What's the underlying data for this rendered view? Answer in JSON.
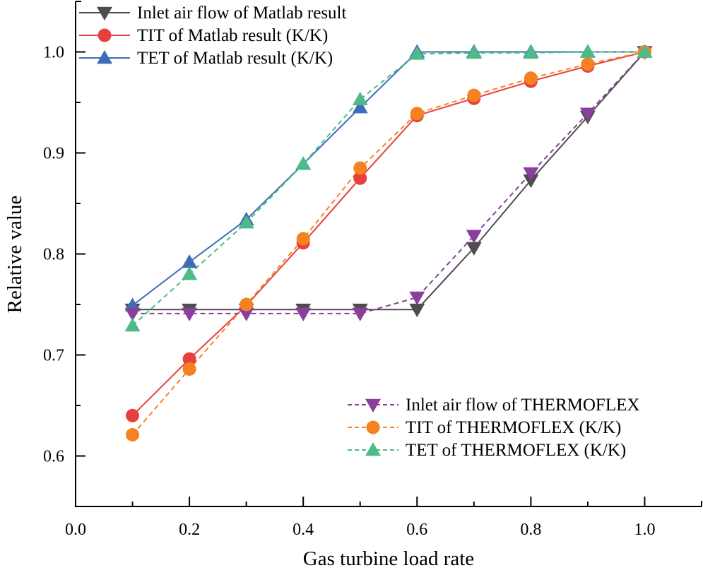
{
  "chart_data": {
    "type": "line",
    "title": "",
    "xlabel": "Gas turbine load rate",
    "ylabel": "Relative value",
    "xlim": [
      0.0,
      1.1
    ],
    "ylim": [
      0.55,
      1.05
    ],
    "xticks": [
      0.0,
      0.2,
      0.4,
      0.6,
      0.8,
      1.0
    ],
    "xtick_labels": [
      "0.0",
      "0.2",
      "0.4",
      "0.6",
      "0.8",
      "1.0"
    ],
    "xminor": [
      0.1,
      0.3,
      0.5,
      0.7,
      0.9
    ],
    "yticks": [
      0.6,
      0.7,
      0.8,
      0.9,
      1.0
    ],
    "ytick_labels": [
      "0.6",
      "0.7",
      "0.8",
      "0.9",
      "1.0"
    ],
    "yminor": [
      0.65,
      0.75,
      0.85,
      0.95
    ],
    "grid": false,
    "x": [
      0.1,
      0.2,
      0.3,
      0.4,
      0.5,
      0.6,
      0.7,
      0.8,
      0.9,
      1.0
    ],
    "series": [
      {
        "name": "Inlet air flow of Matlab result",
        "color": "#4d4d4d",
        "dash": "solid",
        "marker": "triangle-down",
        "values": [
          0.745,
          0.745,
          0.745,
          0.745,
          0.745,
          0.745,
          0.806,
          0.873,
          0.936,
          1.0
        ]
      },
      {
        "name": "TIT of Matlab result (K/K)",
        "color": "#e8403f",
        "dash": "solid",
        "marker": "circle",
        "values": [
          0.64,
          0.696,
          0.749,
          0.811,
          0.875,
          0.937,
          0.954,
          0.971,
          0.986,
          1.0
        ]
      },
      {
        "name": "TET of Matlab result (K/K)",
        "color": "#3d6cb9",
        "dash": "solid",
        "marker": "triangle-up",
        "values": [
          0.749,
          0.792,
          0.834,
          0.889,
          0.945,
          1.0,
          1.0,
          1.0,
          1.0,
          1.0
        ]
      },
      {
        "name": "Inlet air flow of THERMOFLEX",
        "color": "#8a3f9c",
        "dash": "dashed",
        "marker": "triangle-down",
        "values": [
          0.741,
          0.741,
          0.741,
          0.741,
          0.741,
          0.757,
          0.818,
          0.88,
          0.939,
          1.0
        ]
      },
      {
        "name": "TIT of THERMOFLEX (K/K)",
        "color": "#f58220",
        "dash": "dashed",
        "marker": "circle",
        "values": [
          0.621,
          0.686,
          0.75,
          0.815,
          0.885,
          0.939,
          0.957,
          0.974,
          0.988,
          1.0
        ]
      },
      {
        "name": "TET of THERMOFLEX (K/K)",
        "color": "#4dbb87",
        "dash": "dashed",
        "marker": "triangle-up",
        "values": [
          0.729,
          0.78,
          0.831,
          0.889,
          0.953,
          0.998,
          0.999,
          0.999,
          1.0,
          1.0
        ]
      }
    ],
    "legends": [
      {
        "placement": "top-left",
        "series_indices": [
          0,
          1,
          2
        ]
      },
      {
        "placement": "bottom-right",
        "series_indices": [
          3,
          4,
          5
        ]
      }
    ]
  }
}
